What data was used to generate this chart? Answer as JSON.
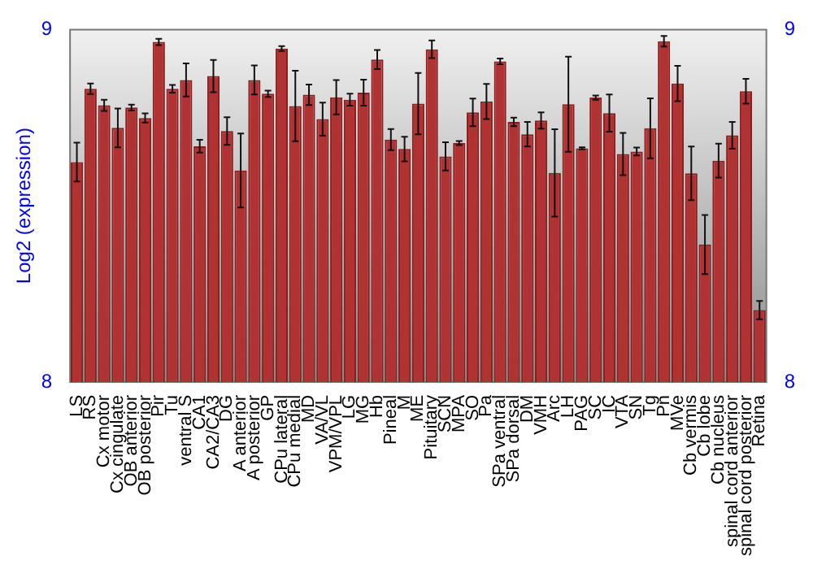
{
  "chart_data": {
    "type": "bar",
    "ylabel": "Log2 (expression)",
    "categories": [
      "LS",
      "RS",
      "Cx motor",
      "Cx cingulate",
      "OB anterior",
      "OB posterior",
      "Pir",
      "Tu",
      "ventral S",
      "CA1",
      "CA2/CA3",
      "DG",
      "A anterior",
      "A posterior",
      "GP",
      "CPu lateral",
      "CPu medial",
      "MD",
      "VA/VL",
      "VPM/VPL",
      "LG",
      "MG",
      "Hb",
      "Pineal",
      "M",
      "ME",
      "Pituitary",
      "SCN",
      "MPA",
      "SO",
      "Pa",
      "SPa ventral",
      "SPa dorsal",
      "DM",
      "VMH",
      "Arc",
      "LH",
      "PAG",
      "SC",
      "IC",
      "VTA",
      "SN",
      "Tg",
      "Pn",
      "MVe",
      "Cb vermis",
      "Cb lobe",
      "Cb nucleus",
      "spinal cord anterior",
      "spinal cord posterior",
      "Retina"
    ],
    "values": [
      8.624,
      8.832,
      8.785,
      8.721,
      8.779,
      8.749,
      8.965,
      8.832,
      8.857,
      8.669,
      8.868,
      8.712,
      8.6,
      8.857,
      8.818,
      8.946,
      8.783,
      8.815,
      8.746,
      8.808,
      8.801,
      8.821,
      8.915,
      8.688,
      8.661,
      8.79,
      8.944,
      8.64,
      8.678,
      8.765,
      8.796,
      8.91,
      8.738,
      8.703,
      8.742,
      8.593,
      8.788,
      8.663,
      8.807,
      8.763,
      8.647,
      8.654,
      8.72,
      8.967,
      8.847,
      8.592,
      8.39,
      8.628,
      8.7,
      8.825,
      8.204
    ],
    "errors": [
      0.055,
      0.015,
      0.016,
      0.055,
      0.008,
      0.013,
      0.009,
      0.011,
      0.047,
      0.018,
      0.046,
      0.039,
      0.105,
      0.041,
      0.009,
      0.007,
      0.1,
      0.029,
      0.047,
      0.049,
      0.017,
      0.037,
      0.027,
      0.03,
      0.035,
      0.087,
      0.025,
      0.04,
      0.006,
      0.039,
      0.05,
      0.008,
      0.012,
      0.035,
      0.023,
      0.124,
      0.135,
      0.003,
      0.006,
      0.053,
      0.06,
      0.011,
      0.085,
      0.015,
      0.05,
      0.076,
      0.084,
      0.048,
      0.038,
      0.035,
      0.026
    ],
    "color": "#b03232",
    "ylim": [
      8,
      9
    ],
    "yticks": [
      8,
      9
    ],
    "y2lim": [
      8,
      9
    ],
    "y2ticks": [
      8,
      9
    ],
    "grid": false,
    "legend": false
  }
}
